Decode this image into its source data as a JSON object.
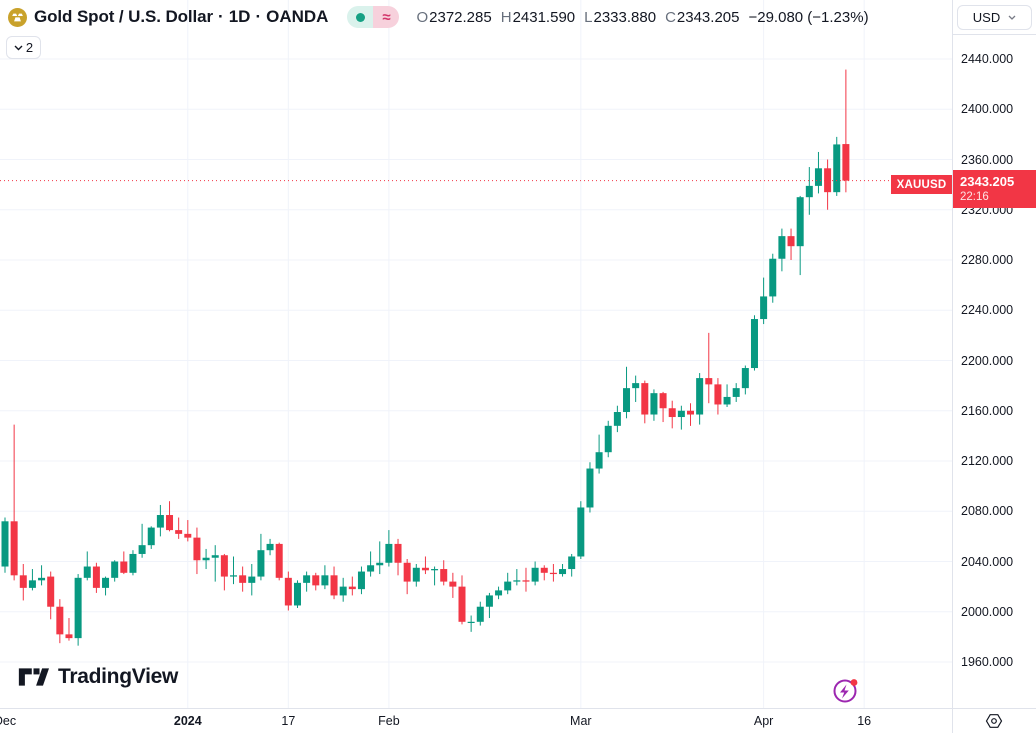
{
  "header": {
    "symbol_name": "Gold Spot / U.S. Dollar",
    "separator": "·",
    "interval": "1D",
    "exchange": "OANDA",
    "market_status": {
      "delayed_symbol": "≈"
    },
    "ohlc": {
      "open_label": "O",
      "open": "2372.285",
      "high_label": "H",
      "high": "2431.590",
      "low_label": "L",
      "low": "2333.880",
      "close_label": "C",
      "close": "2343.205",
      "change": "−29.080 (−1.23%)"
    },
    "object_tree_button_count": "2",
    "currency_button_label": "USD"
  },
  "price_label": {
    "symbol": "XAUUSD",
    "price": "2343.205",
    "countdown": "22:16"
  },
  "watermark_text": "TradingView",
  "colors": {
    "up": "#089981",
    "down": "#f23645",
    "accent_red": "#f23645",
    "text": "#131722",
    "muted_text": "#68707d",
    "grid": "#f0f3fa",
    "border": "#e0e3eb",
    "pill_mint_bg": "#daf2ec",
    "pill_pink_bg": "#f7d1dc",
    "pill_dot": "#15a184",
    "pill_approx": "#d3366b",
    "gold_logo": "#c9a22b",
    "boost_purple": "#9c27b0"
  },
  "chart_data": {
    "type": "candlestick",
    "symbol": "XAUUSD",
    "exchange": "OANDA",
    "interval": "1D",
    "current_price": 2343.205,
    "price_axis_ticks": [
      2440,
      2400,
      2360,
      2320,
      2280,
      2240,
      2200,
      2160,
      2120,
      2080,
      2040,
      2000,
      1960
    ],
    "price_tick_decimals": 3,
    "grid_price_step": 40,
    "visible_price_range": [
      1923,
      2487
    ],
    "time_axis_ticks": [
      {
        "label": "Dec",
        "index": 0
      },
      {
        "label": "2024",
        "index": 20,
        "bold": true
      },
      {
        "label": "17",
        "index": 31
      },
      {
        "label": "Feb",
        "index": 42
      },
      {
        "label": "Mar",
        "index": 63
      },
      {
        "label": "Apr",
        "index": 83
      },
      {
        "label": "16",
        "index": 94
      }
    ],
    "candle_fields": [
      "date",
      "open",
      "high",
      "low",
      "close"
    ],
    "candles": [
      [
        "Dec 1",
        2036,
        2075,
        2031,
        2072
      ],
      [
        "Dec 4",
        2072,
        2149,
        2025,
        2029
      ],
      [
        "Dec 5",
        2029,
        2038,
        2009,
        2019
      ],
      [
        "Dec 6",
        2019,
        2034,
        2017,
        2025
      ],
      [
        "Dec 7",
        2025,
        2037,
        2021,
        2027
      ],
      [
        "Dec 8",
        2028,
        2032,
        1994,
        2004
      ],
      [
        "Dec 11",
        2004,
        2010,
        1975,
        1982
      ],
      [
        "Dec 12",
        1982,
        1995,
        1977,
        1979
      ],
      [
        "Dec 13",
        1979,
        2030,
        1973,
        2027
      ],
      [
        "Dec 14",
        2027,
        2048,
        2025,
        2036
      ],
      [
        "Dec 15",
        2036,
        2039,
        2015,
        2019
      ],
      [
        "Dec 18",
        2019,
        2028,
        2013,
        2027
      ],
      [
        "Dec 19",
        2027,
        2041,
        2024,
        2040
      ],
      [
        "Dec 20",
        2040,
        2048,
        2030,
        2031
      ],
      [
        "Dec 21",
        2031,
        2049,
        2029,
        2046
      ],
      [
        "Dec 22",
        2046,
        2070,
        2043,
        2053
      ],
      [
        "Dec 26",
        2053,
        2068,
        2050,
        2067
      ],
      [
        "Dec 27",
        2067,
        2085,
        2060,
        2077
      ],
      [
        "Dec 28",
        2077,
        2088,
        2064,
        2065
      ],
      [
        "Dec 29",
        2065,
        2075,
        2058,
        2062
      ],
      [
        "Jan 2",
        2062,
        2073,
        2056,
        2059
      ],
      [
        "Jan 3",
        2059,
        2067,
        2030,
        2041
      ],
      [
        "Jan 4",
        2041,
        2050,
        2034,
        2043
      ],
      [
        "Jan 5",
        2043,
        2053,
        2024,
        2045
      ],
      [
        "Jan 8",
        2045,
        2046,
        2017,
        2028
      ],
      [
        "Jan 9",
        2028,
        2044,
        2022,
        2029
      ],
      [
        "Jan 10",
        2029,
        2036,
        2016,
        2023
      ],
      [
        "Jan 11",
        2023,
        2038,
        2013,
        2028
      ],
      [
        "Jan 12",
        2028,
        2062,
        2025,
        2049
      ],
      [
        "Jan 15",
        2049,
        2058,
        2045,
        2054
      ],
      [
        "Jan 16",
        2054,
        2055,
        2025,
        2027
      ],
      [
        "Jan 17",
        2027,
        2032,
        2001,
        2005
      ],
      [
        "Jan 18",
        2005,
        2025,
        2003,
        2023
      ],
      [
        "Jan 19",
        2023,
        2032,
        2016,
        2029
      ],
      [
        "Jan 22",
        2029,
        2031,
        2017,
        2021
      ],
      [
        "Jan 23",
        2021,
        2037,
        2018,
        2029
      ],
      [
        "Jan 24",
        2029,
        2036,
        2010,
        2013
      ],
      [
        "Jan 25",
        2013,
        2027,
        2008,
        2020
      ],
      [
        "Jan 26",
        2020,
        2028,
        2013,
        2018
      ],
      [
        "Jan 29",
        2018,
        2036,
        2014,
        2032
      ],
      [
        "Jan 30",
        2032,
        2048,
        2028,
        2037
      ],
      [
        "Jan 31",
        2037,
        2056,
        2030,
        2039
      ],
      [
        "Feb 1",
        2039,
        2065,
        2036,
        2054
      ],
      [
        "Feb 2",
        2054,
        2058,
        2029,
        2039
      ],
      [
        "Feb 5",
        2039,
        2042,
        2014,
        2024
      ],
      [
        "Feb 6",
        2024,
        2038,
        2020,
        2035
      ],
      [
        "Feb 7",
        2035,
        2044,
        2030,
        2033
      ],
      [
        "Feb 8",
        2033,
        2036,
        2021,
        2034
      ],
      [
        "Feb 9",
        2034,
        2041,
        2021,
        2024
      ],
      [
        "Feb 12",
        2024,
        2031,
        2011,
        2020
      ],
      [
        "Feb 13",
        2020,
        2029,
        1990,
        1992
      ],
      [
        "Feb 14",
        1992,
        1997,
        1984,
        1992
      ],
      [
        "Feb 15",
        1992,
        2008,
        1989,
        2004
      ],
      [
        "Feb 16",
        2004,
        2015,
        1995,
        2013
      ],
      [
        "Feb 19",
        2013,
        2020,
        2010,
        2017
      ],
      [
        "Feb 20",
        2017,
        2031,
        2014,
        2024
      ],
      [
        "Feb 21",
        2024,
        2034,
        2021,
        2025
      ],
      [
        "Feb 22",
        2025,
        2035,
        2016,
        2024
      ],
      [
        "Feb 23",
        2024,
        2040,
        2021,
        2035
      ],
      [
        "Feb 26",
        2035,
        2037,
        2025,
        2031
      ],
      [
        "Feb 27",
        2031,
        2038,
        2024,
        2030
      ],
      [
        "Feb 28",
        2030,
        2038,
        2028,
        2034
      ],
      [
        "Feb 29",
        2034,
        2046,
        2028,
        2044
      ],
      [
        "Mar 1",
        2044,
        2088,
        2042,
        2083
      ],
      [
        "Mar 4",
        2083,
        2119,
        2079,
        2114
      ],
      [
        "Mar 5",
        2114,
        2141,
        2110,
        2127
      ],
      [
        "Mar 6",
        2127,
        2152,
        2123,
        2148
      ],
      [
        "Mar 7",
        2148,
        2164,
        2143,
        2159
      ],
      [
        "Mar 8",
        2159,
        2195,
        2154,
        2178
      ],
      [
        "Mar 11",
        2178,
        2188,
        2167,
        2182
      ],
      [
        "Mar 12",
        2182,
        2184,
        2150,
        2157
      ],
      [
        "Mar 13",
        2157,
        2177,
        2152,
        2174
      ],
      [
        "Mar 14",
        2174,
        2175,
        2151,
        2162
      ],
      [
        "Mar 15",
        2162,
        2168,
        2146,
        2155
      ],
      [
        "Mar 18",
        2155,
        2164,
        2145,
        2160
      ],
      [
        "Mar 19",
        2160,
        2166,
        2148,
        2157
      ],
      [
        "Mar 20",
        2157,
        2190,
        2149,
        2186
      ],
      [
        "Mar 21",
        2186,
        2222,
        2166,
        2181
      ],
      [
        "Mar 22",
        2181,
        2186,
        2157,
        2165
      ],
      [
        "Mar 25",
        2165,
        2181,
        2163,
        2171
      ],
      [
        "Mar 26",
        2171,
        2182,
        2167,
        2178
      ],
      [
        "Mar 27",
        2178,
        2196,
        2173,
        2194
      ],
      [
        "Mar 28",
        2194,
        2236,
        2192,
        2233
      ],
      [
        "Apr 1",
        2233,
        2266,
        2229,
        2251
      ],
      [
        "Apr 2",
        2251,
        2285,
        2246,
        2281
      ],
      [
        "Apr 3",
        2281,
        2305,
        2271,
        2299
      ],
      [
        "Apr 4",
        2299,
        2305,
        2280,
        2291
      ],
      [
        "Apr 5",
        2291,
        2331,
        2268,
        2330
      ],
      [
        "Apr 8",
        2330,
        2354,
        2316,
        2339
      ],
      [
        "Apr 9",
        2339,
        2366,
        2333,
        2353
      ],
      [
        "Apr 10",
        2353,
        2360,
        2320,
        2334
      ],
      [
        "Apr 11",
        2334,
        2378,
        2331,
        2372
      ],
      [
        "Apr 12",
        2372.285,
        2431.59,
        2333.88,
        2343.205
      ]
    ]
  }
}
